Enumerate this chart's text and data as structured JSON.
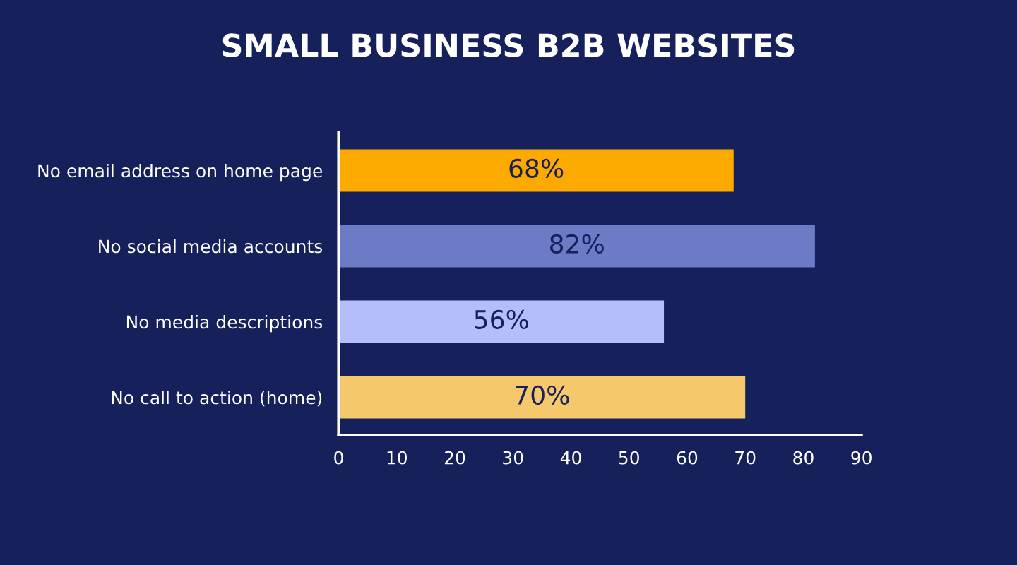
{
  "chart_data": {
    "type": "bar",
    "orientation": "horizontal",
    "title": "SMALL BUSINESS B2B WEBSITES",
    "categories": [
      "No email address on home page",
      "No social media accounts",
      "No media descriptions",
      "No call to action (home)"
    ],
    "values": [
      68,
      82,
      56,
      70
    ],
    "colors": [
      "#fdaa00",
      "#6b7bc6",
      "#b4befa",
      "#f6c86c"
    ],
    "value_labels": [
      "68%",
      "82%",
      "56%",
      "70%"
    ],
    "xlim": [
      0,
      90
    ],
    "xticks": [
      0,
      10,
      20,
      30,
      40,
      50,
      60,
      70,
      80,
      90
    ],
    "grid": false,
    "legend": false
  }
}
